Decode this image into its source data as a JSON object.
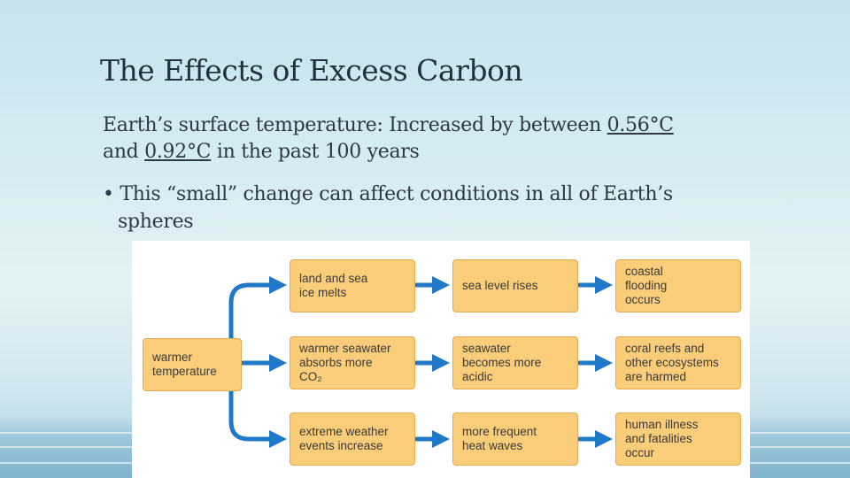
{
  "slide": {
    "title": "The Effects of Excess Carbon",
    "line1_prefix": "Earth’s surface temperature: Increased by between ",
    "line1_value": "0.56°C",
    "line2_prefix": "and ",
    "line2_value": "0.92°C",
    "line2_suffix": " in the past 100 years",
    "bullet_line1": "• This “small” change can affect conditions in all of Earth’s",
    "bullet_line2": "spheres"
  },
  "diagram": {
    "start": "warmer\ntemperature",
    "row1": [
      "land and sea\nice melts",
      "sea level rises",
      "coastal\nflooding\noccurs"
    ],
    "row2": [
      "warmer seawater\nabsorbs more\nCO₂",
      "seawater\nbecomes more\nacidic",
      "coral reefs and\nother ecosystems\nare harmed"
    ],
    "row3": [
      "extreme weather\nevents increase",
      "more frequent\nheat waves",
      "human illness\nand fatalities\noccur"
    ],
    "colors": {
      "box_fill": "#f9cd7a",
      "box_border": "#e2ad52",
      "arrow": "#1f78c8"
    }
  }
}
